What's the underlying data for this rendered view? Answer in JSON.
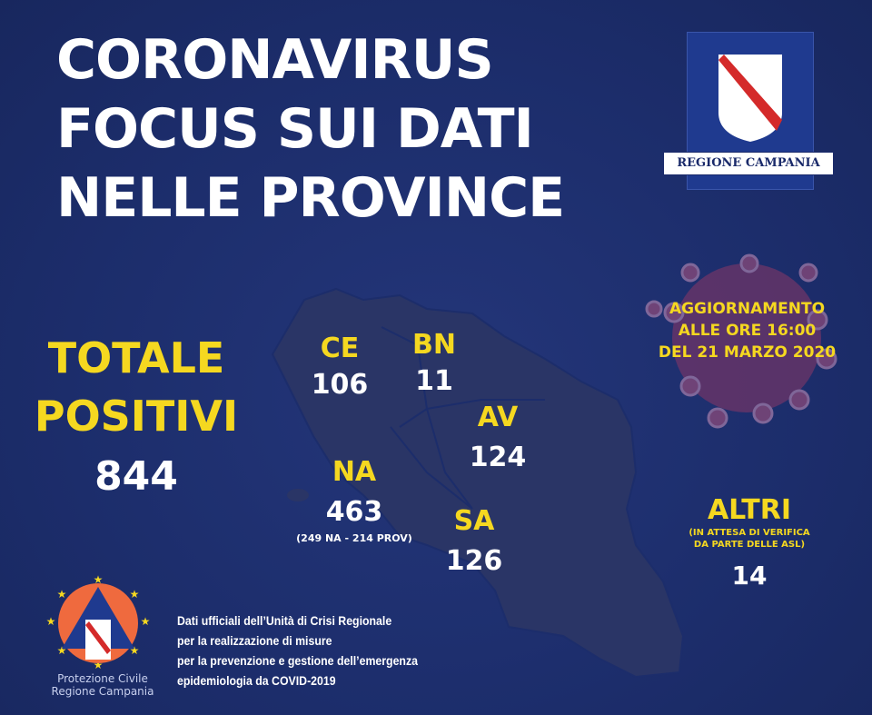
{
  "title": {
    "line1": "CORONAVIRUS",
    "line2": "FOCUS SUI DATI",
    "line3": "NELLE PROVINCE"
  },
  "logo": {
    "text": "REGIONE CAMPANIA"
  },
  "update": {
    "line1": "AGGIORNAMENTO",
    "line2": "ALLE ORE 16:00",
    "line3": "DEL 21 MARZO 2020"
  },
  "totale": {
    "line1": "TOTALE",
    "line2": "POSITIVI",
    "value": "844"
  },
  "provinces": [
    {
      "code": "CE",
      "value": "106"
    },
    {
      "code": "BN",
      "value": "11"
    },
    {
      "code": "AV",
      "value": "124"
    },
    {
      "code": "NA",
      "value": "463",
      "detail": "(249 NA - 214 PROV)"
    },
    {
      "code": "SA",
      "value": "126"
    }
  ],
  "altri": {
    "label": "ALTRI",
    "note1": "(IN ATTESA DI VERIFICA",
    "note2": "DA PARTE DELLE ASL)",
    "value": "14"
  },
  "footer": {
    "line1": "Dati ufficiali dell’Unità di Crisi Regionale",
    "line2": "per la realizzazione di misure",
    "line3": "per la prevenzione e gestione dell’emergenza",
    "line4": "epidemiologia da COVID-2019"
  },
  "protezione": {
    "line1": "Protezione Civile",
    "line2": "Regione Campania"
  },
  "colors": {
    "background": "#1c2d6b",
    "accent": "#f5d820",
    "map": "#2a3566",
    "virus": "#7a3a6e"
  }
}
